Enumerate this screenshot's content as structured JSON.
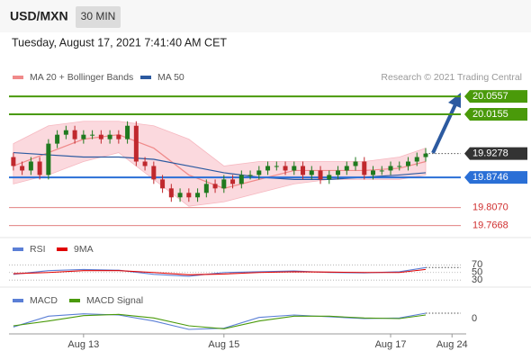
{
  "header": {
    "symbol": "USD/MXN",
    "interval": "30 MIN",
    "timestamp": "Tuesday, August 17, 2021 7:41:40 AM CET"
  },
  "chart_data": {
    "type": "candlestick",
    "credit": "Research © 2021 Trading Central",
    "up_color": "#1f7a1f",
    "down_color": "#c0282d",
    "xlim": [
      -0.5,
      51
    ],
    "xticks": [
      {
        "value": 8,
        "label": "Aug 13"
      },
      {
        "value": 24,
        "label": "Aug 15"
      },
      {
        "value": 43,
        "label": "Aug 17"
      },
      {
        "value": 50,
        "label": "Aug 24"
      }
    ],
    "ylim": [
      19.74,
      20.08
    ],
    "open": [
      19.92,
      19.9,
      19.89,
      19.91,
      19.88,
      19.95,
      19.97,
      19.98,
      19.96,
      19.97,
      19.97,
      19.96,
      19.97,
      19.96,
      19.99,
      19.91,
      19.9,
      19.87,
      19.85,
      19.83,
      19.84,
      19.83,
      19.84,
      19.86,
      19.85,
      19.87,
      19.86,
      19.88,
      19.88,
      19.89,
      19.9,
      19.9,
      19.89,
      19.9,
      19.88,
      19.89,
      19.87,
      19.88,
      19.89,
      19.9,
      19.91,
      19.88,
      19.89,
      19.89,
      19.9,
      19.9,
      19.91,
      19.92
    ],
    "high": [
      19.93,
      19.91,
      19.92,
      19.92,
      19.96,
      19.98,
      19.99,
      19.99,
      19.98,
      19.98,
      19.98,
      19.98,
      19.98,
      20.0,
      20.0,
      19.92,
      19.91,
      19.88,
      19.86,
      19.85,
      19.85,
      19.85,
      19.87,
      19.87,
      19.88,
      19.88,
      19.89,
      19.89,
      19.9,
      19.91,
      19.91,
      19.91,
      19.91,
      19.91,
      19.9,
      19.9,
      19.89,
      19.9,
      19.91,
      19.92,
      19.92,
      19.9,
      19.9,
      19.91,
      19.91,
      19.92,
      19.93,
      19.94
    ],
    "low": [
      19.89,
      19.88,
      19.88,
      19.87,
      19.87,
      19.94,
      19.96,
      19.95,
      19.95,
      19.96,
      19.95,
      19.95,
      19.95,
      19.95,
      19.9,
      19.89,
      19.86,
      19.84,
      19.82,
      19.82,
      19.82,
      19.82,
      19.83,
      19.84,
      19.84,
      19.85,
      19.85,
      19.87,
      19.87,
      19.88,
      19.89,
      19.88,
      19.88,
      19.87,
      19.87,
      19.86,
      19.86,
      19.87,
      19.88,
      19.89,
      19.87,
      19.87,
      19.88,
      19.88,
      19.89,
      19.89,
      19.9,
      19.91
    ],
    "close": [
      19.9,
      19.89,
      19.91,
      19.88,
      19.95,
      19.97,
      19.98,
      19.96,
      19.97,
      19.97,
      19.96,
      19.97,
      19.96,
      19.99,
      19.91,
      19.9,
      19.87,
      19.85,
      19.83,
      19.84,
      19.83,
      19.84,
      19.86,
      19.85,
      19.87,
      19.86,
      19.88,
      19.88,
      19.89,
      19.9,
      19.9,
      19.89,
      19.9,
      19.88,
      19.89,
      19.87,
      19.88,
      19.89,
      19.9,
      19.91,
      19.88,
      19.89,
      19.89,
      19.9,
      19.9,
      19.91,
      19.92,
      19.9278
    ],
    "overlays": [
      {
        "name": "MA 20 + Bollinger Bands",
        "color": "#f08a8a",
        "band_color": "#fbd9de",
        "x": [
          0,
          4,
          8,
          12,
          16,
          20,
          24,
          28,
          32,
          36,
          40,
          44,
          47
        ],
        "values": [
          19.9,
          19.93,
          19.96,
          19.97,
          19.94,
          19.88,
          19.85,
          19.87,
          19.89,
          19.89,
          19.89,
          19.895,
          19.91
        ],
        "upper": [
          19.95,
          19.99,
          20.0,
          20.0,
          19.99,
          19.96,
          19.9,
          19.91,
          19.91,
          19.91,
          19.91,
          19.92,
          19.94
        ],
        "lower": [
          19.86,
          19.88,
          19.91,
          19.93,
          19.87,
          19.81,
          19.82,
          19.84,
          19.86,
          19.87,
          19.87,
          19.87,
          19.88
        ]
      },
      {
        "name": "MA 50",
        "color": "#2c5aa0",
        "x": [
          0,
          4,
          8,
          12,
          16,
          20,
          24,
          28,
          32,
          36,
          40,
          44,
          47
        ],
        "values": [
          19.93,
          19.925,
          19.92,
          19.92,
          19.915,
          19.9,
          19.885,
          19.875,
          19.87,
          19.87,
          19.875,
          19.88,
          19.885
        ]
      }
    ],
    "levels": [
      {
        "value": 20.0557,
        "color": "#4a9a0a",
        "boxed": true,
        "line": "solid"
      },
      {
        "value": 20.0155,
        "color": "#4a9a0a",
        "boxed": true,
        "line": "solid"
      },
      {
        "value": 19.9278,
        "color": "#333333",
        "boxed": true,
        "line": "dotted"
      },
      {
        "value": 19.8746,
        "color": "#2a6fd6",
        "boxed": true,
        "line": "solid"
      },
      {
        "value": 19.807,
        "label": "19.8070",
        "color": "#d03030",
        "boxed": false,
        "line": "solid"
      },
      {
        "value": 19.7668,
        "color": "#d03030",
        "boxed": false,
        "line": "solid"
      }
    ],
    "panels": [
      {
        "type": "line",
        "ylim": [
          15,
          85
        ],
        "yticks": [
          70,
          50,
          30
        ],
        "x": [
          0,
          4,
          8,
          12,
          16,
          20,
          24,
          28,
          32,
          36,
          40,
          44,
          47
        ],
        "series": [
          {
            "name": "RSI",
            "color": "#5b7fd6",
            "values": [
              45,
              55,
              58,
              56,
              45,
              40,
              50,
              52,
              54,
              50,
              49,
              52,
              63
            ]
          },
          {
            "name": "9MA",
            "color": "#e00000",
            "values": [
              47,
              50,
              55,
              55,
              50,
              44,
              46,
              50,
              52,
              51,
              50,
              50,
              58
            ]
          }
        ]
      },
      {
        "type": "line",
        "ylim": [
          -0.03,
          0.03
        ],
        "yticks": [
          0
        ],
        "x": [
          0,
          4,
          8,
          12,
          16,
          20,
          24,
          28,
          32,
          36,
          40,
          44,
          47
        ],
        "series": [
          {
            "name": "MACD",
            "color": "#5b7fd6",
            "values": [
              -0.014,
              0.004,
              0.008,
              0.006,
              -0.004,
              -0.018,
              -0.016,
              0.002,
              0.006,
              0.003,
              0.0,
              0.001,
              0.009
            ]
          },
          {
            "name": "MACD Signal",
            "color": "#4a9a0a",
            "values": [
              -0.012,
              -0.004,
              0.005,
              0.007,
              0.001,
              -0.012,
              -0.017,
              -0.004,
              0.004,
              0.004,
              0.001,
              0.0,
              0.006
            ]
          }
        ]
      }
    ]
  }
}
